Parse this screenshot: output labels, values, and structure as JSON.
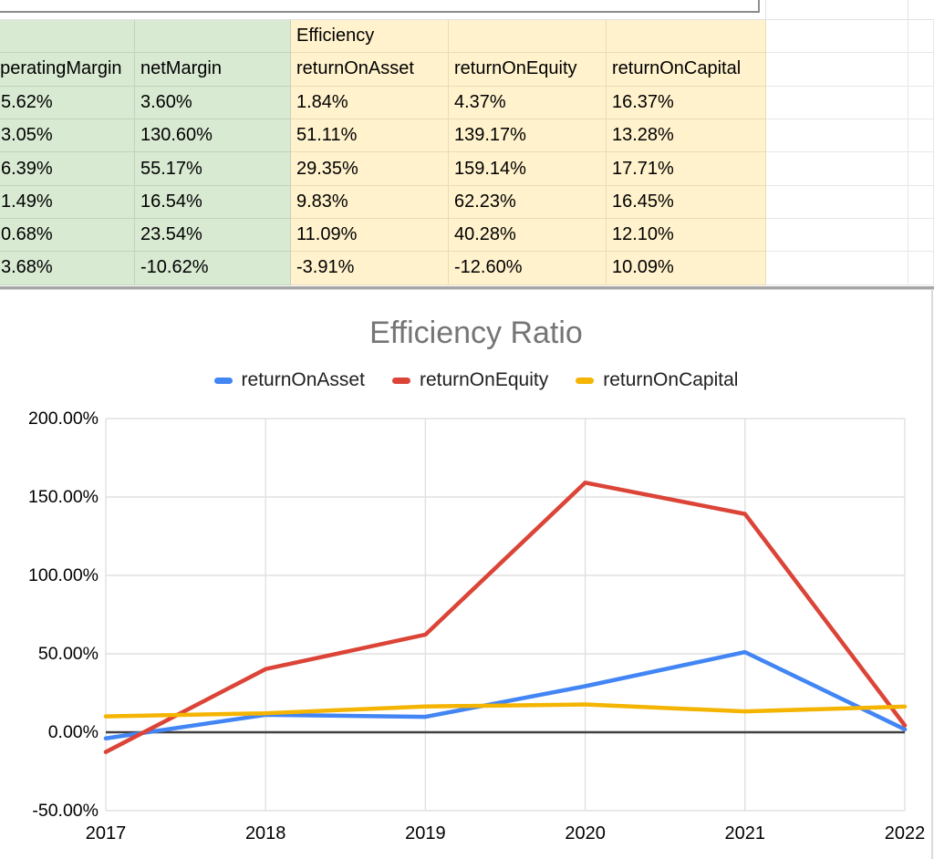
{
  "table": {
    "group_header": "Efficiency",
    "headers": [
      "operatingMargin",
      "netMargin",
      "returnOnAsset",
      "returnOnEquity",
      "returnOnCapital"
    ],
    "rows": [
      [
        "5.62%",
        "3.60%",
        "1.84%",
        "4.37%",
        "16.37%"
      ],
      [
        "3.05%",
        "130.60%",
        "51.11%",
        "139.17%",
        "13.28%"
      ],
      [
        "6.39%",
        "55.17%",
        "29.35%",
        "159.14%",
        "17.71%"
      ],
      [
        "1.49%",
        "16.54%",
        "9.83%",
        "62.23%",
        "16.45%"
      ],
      [
        "0.68%",
        "23.54%",
        "11.09%",
        "40.28%",
        "12.10%"
      ],
      [
        "3.68%",
        "-10.62%",
        "-3.91%",
        "-12.60%",
        "10.09%"
      ]
    ],
    "fill_colors": {
      "margins": "#d9ead3",
      "efficiency": "#fff2cc"
    }
  },
  "chart_data": {
    "type": "line",
    "title": "Efficiency Ratio",
    "title_color": "#757575",
    "categories": [
      "2017",
      "2018",
      "2019",
      "2020",
      "2021",
      "2022"
    ],
    "series": [
      {
        "name": "returnOnAsset",
        "color": "#4285f4",
        "values": [
          -3.91,
          11.09,
          9.83,
          29.35,
          51.11,
          1.84
        ]
      },
      {
        "name": "returnOnEquity",
        "color": "#db4437",
        "values": [
          -12.6,
          40.28,
          62.23,
          159.14,
          139.17,
          4.37
        ]
      },
      {
        "name": "returnOnCapital",
        "color": "#f4b400",
        "values": [
          10.09,
          12.1,
          16.45,
          17.71,
          13.28,
          16.37
        ]
      }
    ],
    "ylim": [
      -50,
      200
    ],
    "y_ticks": [
      {
        "value": 200,
        "label": "200.00%"
      },
      {
        "value": 150,
        "label": "150.00%"
      },
      {
        "value": 100,
        "label": "100.00%"
      },
      {
        "value": 50,
        "label": "50.00%"
      },
      {
        "value": 0,
        "label": "0.00%"
      },
      {
        "value": -50,
        "label": "-50.00%"
      }
    ],
    "grid": true,
    "legend_position": "top",
    "zero_line_color": "#404040",
    "gridline_color": "#e0e0e0"
  }
}
